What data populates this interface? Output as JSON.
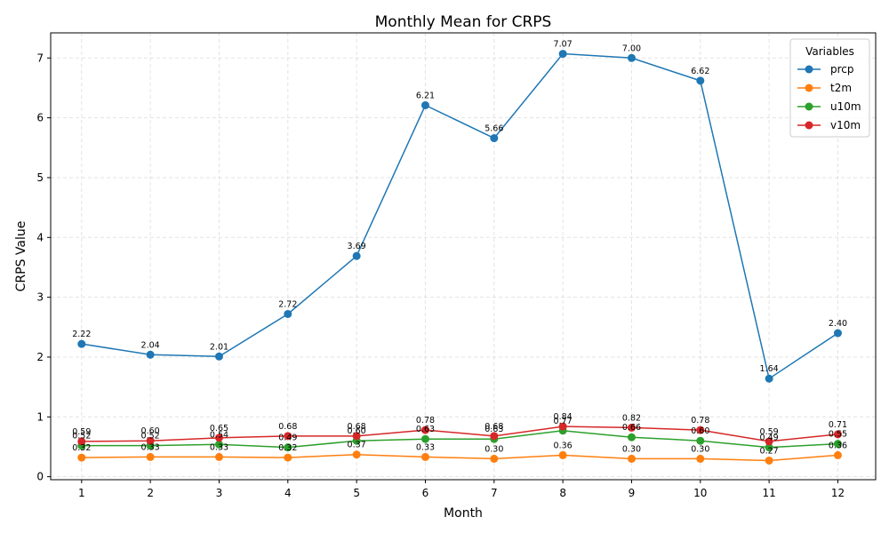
{
  "chart_data": {
    "type": "line",
    "title": "Monthly Mean for CRPS",
    "xlabel": "Month",
    "ylabel": "CRPS Value",
    "x": [
      1,
      2,
      3,
      4,
      5,
      6,
      7,
      8,
      9,
      10,
      11,
      12
    ],
    "xlim": [
      0.55,
      12.55
    ],
    "ylim": [
      -0.05,
      7.42
    ],
    "yticks": [
      0,
      1,
      2,
      3,
      4,
      5,
      6,
      7
    ],
    "grid": true,
    "legend": {
      "title": "Variables",
      "placement": "top-right"
    },
    "series": [
      {
        "name": "prcp",
        "color": "#1f77b4",
        "values": [
          2.22,
          2.04,
          2.01,
          2.72,
          3.69,
          6.21,
          5.66,
          7.07,
          7.0,
          6.62,
          1.64,
          2.4
        ]
      },
      {
        "name": "t2m",
        "color": "#ff7f0e",
        "values": [
          0.32,
          0.33,
          0.33,
          0.32,
          0.37,
          0.33,
          0.3,
          0.36,
          0.3,
          0.3,
          0.27,
          0.36
        ]
      },
      {
        "name": "u10m",
        "color": "#2ca02c",
        "values": [
          0.52,
          0.52,
          0.54,
          0.49,
          0.6,
          0.63,
          0.63,
          0.77,
          0.66,
          0.6,
          0.49,
          0.55
        ]
      },
      {
        "name": "v10m",
        "color": "#d62728",
        "values": [
          0.59,
          0.6,
          0.65,
          0.68,
          0.68,
          0.78,
          0.68,
          0.84,
          0.82,
          0.78,
          0.59,
          0.71
        ]
      }
    ]
  }
}
